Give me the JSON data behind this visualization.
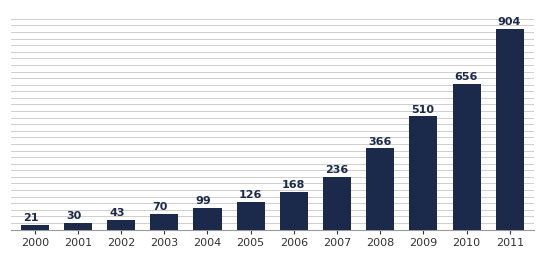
{
  "years": [
    "2000",
    "2001",
    "2002",
    "2003",
    "2004",
    "2005",
    "2006",
    "2007",
    "2008",
    "2009",
    "2010",
    "2011"
  ],
  "values": [
    21,
    30,
    43,
    70,
    99,
    126,
    168,
    236,
    366,
    510,
    656,
    904
  ],
  "bar_color": "#1b2a4a",
  "background_color": "#ffffff",
  "grid_color": "#c8c8c8",
  "label_color": "#1b2a4a",
  "ylim": [
    0,
    950
  ],
  "bar_width": 0.65,
  "label_fontsize": 8,
  "tick_fontsize": 8,
  "grid_step": 30,
  "num_gridlines": 32
}
